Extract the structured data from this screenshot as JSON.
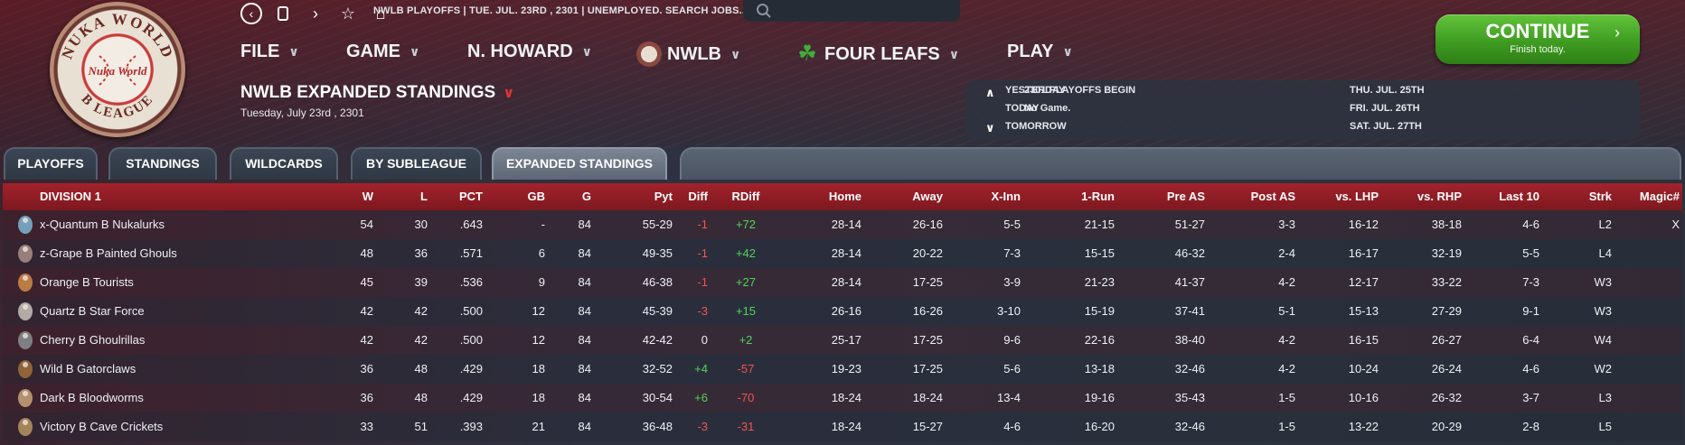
{
  "logo": {
    "text_top": "NUKA WORLD",
    "text_mid": "Nuka World",
    "text_bottom": "B LEAGUE"
  },
  "nav_icons": [
    "back-icon",
    "document-icon",
    "forward-icon",
    "star-icon",
    "home-icon"
  ],
  "status_line": "NWLB PLAYOFFS   |  TUE. JUL. 23RD , 2301   |  UNEMPLOYED. SEARCH JOBS...",
  "search": {
    "placeholder": ""
  },
  "menus": {
    "file": "FILE",
    "game": "GAME",
    "manager": "N. HOWARD",
    "league": "NWLB",
    "team": "FOUR LEAFS",
    "play": "PLAY"
  },
  "page_title": "NWLB EXPANDED STANDINGS",
  "page_date": "Tuesday, July 23rd , 2301",
  "continue_button": {
    "label": "CONTINUE",
    "sub": "Finish today."
  },
  "calendar": {
    "yesterday_label": "YESTERDAY",
    "yesterday_value": "2301 PLAYOFFS BEGIN",
    "today_label": "TODAY",
    "today_value": "No Game.",
    "tomorrow_label": "TOMORROW",
    "tomorrow_value": "",
    "upcoming": [
      "THU. JUL. 25TH",
      "FRI. JUL. 26TH",
      "SAT. JUL. 27TH"
    ]
  },
  "tabs": [
    "PLAYOFFS",
    "STANDINGS",
    "WILDCARDS",
    "BY SUBLEAGUE",
    "EXPANDED STANDINGS"
  ],
  "active_tab": "EXPANDED STANDINGS",
  "table": {
    "columns": [
      "DIVISION 1",
      "W",
      "L",
      "PCT",
      "GB",
      "G",
      "Pyt",
      "Diff",
      "RDiff",
      "Home",
      "Away",
      "X-Inn",
      "1-Run",
      "Pre AS",
      "Post AS",
      "vs. LHP",
      "vs. RHP",
      "Last 10",
      "Strk",
      "Magic#"
    ],
    "rows": [
      {
        "team": "x-Quantum B Nukalurks",
        "w": "54",
        "l": "30",
        "pct": ".643",
        "gb": "-",
        "g": "84",
        "pyt": "55-29",
        "diff": "-1",
        "rdiff": "+72",
        "home": "28-14",
        "away": "26-16",
        "xinn": "5-5",
        "onerun": "21-15",
        "preas": "51-27",
        "postas": "3-3",
        "vslhp": "16-12",
        "vsrhp": "38-18",
        "last10": "4-6",
        "strk": "L2",
        "magic": "X"
      },
      {
        "team": "z-Grape B Painted Ghouls",
        "w": "48",
        "l": "36",
        "pct": ".571",
        "gb": "6",
        "g": "84",
        "pyt": "49-35",
        "diff": "-1",
        "rdiff": "+42",
        "home": "28-14",
        "away": "20-22",
        "xinn": "7-3",
        "onerun": "15-15",
        "preas": "46-32",
        "postas": "2-4",
        "vslhp": "16-17",
        "vsrhp": "32-19",
        "last10": "5-5",
        "strk": "L4",
        "magic": ""
      },
      {
        "team": "Orange B Tourists",
        "w": "45",
        "l": "39",
        "pct": ".536",
        "gb": "9",
        "g": "84",
        "pyt": "46-38",
        "diff": "-1",
        "rdiff": "+27",
        "home": "28-14",
        "away": "17-25",
        "xinn": "3-9",
        "onerun": "21-23",
        "preas": "41-37",
        "postas": "4-2",
        "vslhp": "12-17",
        "vsrhp": "33-22",
        "last10": "7-3",
        "strk": "W3",
        "magic": ""
      },
      {
        "team": "Quartz B Star Force",
        "w": "42",
        "l": "42",
        "pct": ".500",
        "gb": "12",
        "g": "84",
        "pyt": "45-39",
        "diff": "-3",
        "rdiff": "+15",
        "home": "26-16",
        "away": "16-26",
        "xinn": "3-10",
        "onerun": "15-19",
        "preas": "37-41",
        "postas": "5-1",
        "vslhp": "15-13",
        "vsrhp": "27-29",
        "last10": "9-1",
        "strk": "W3",
        "magic": ""
      },
      {
        "team": "Cherry B Ghoulrillas",
        "w": "42",
        "l": "42",
        "pct": ".500",
        "gb": "12",
        "g": "84",
        "pyt": "42-42",
        "diff": "0",
        "rdiff": "+2",
        "home": "25-17",
        "away": "17-25",
        "xinn": "9-6",
        "onerun": "22-16",
        "preas": "38-40",
        "postas": "4-2",
        "vslhp": "16-15",
        "vsrhp": "26-27",
        "last10": "6-4",
        "strk": "W4",
        "magic": ""
      },
      {
        "team": "Wild B Gatorclaws",
        "w": "36",
        "l": "48",
        "pct": ".429",
        "gb": "18",
        "g": "84",
        "pyt": "32-52",
        "diff": "+4",
        "rdiff": "-57",
        "home": "19-23",
        "away": "17-25",
        "xinn": "5-6",
        "onerun": "13-18",
        "preas": "32-46",
        "postas": "4-2",
        "vslhp": "10-24",
        "vsrhp": "26-24",
        "last10": "4-6",
        "strk": "W2",
        "magic": ""
      },
      {
        "team": "Dark B Bloodworms",
        "w": "36",
        "l": "48",
        "pct": ".429",
        "gb": "18",
        "g": "84",
        "pyt": "30-54",
        "diff": "+6",
        "rdiff": "-70",
        "home": "18-24",
        "away": "18-24",
        "xinn": "13-4",
        "onerun": "19-16",
        "preas": "35-43",
        "postas": "1-5",
        "vslhp": "10-16",
        "vsrhp": "26-32",
        "last10": "3-7",
        "strk": "L3",
        "magic": ""
      },
      {
        "team": "Victory B Cave Crickets",
        "w": "33",
        "l": "51",
        "pct": ".393",
        "gb": "21",
        "g": "84",
        "pyt": "36-48",
        "diff": "-3",
        "rdiff": "-31",
        "home": "18-24",
        "away": "15-27",
        "xinn": "4-6",
        "onerun": "16-20",
        "preas": "32-46",
        "postas": "1-5",
        "vslhp": "13-22",
        "vsrhp": "20-29",
        "last10": "2-8",
        "strk": "L5",
        "magic": ""
      }
    ]
  },
  "colors": {
    "accent_red": "#a3222b",
    "continue_green": "#3f9c22",
    "positive": "#52d35a",
    "negative": "#f2544f"
  }
}
